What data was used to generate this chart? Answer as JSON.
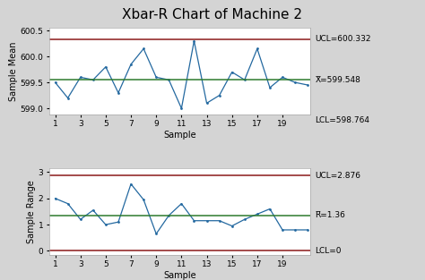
{
  "title": "Xbar-R Chart of Machine 2",
  "xbar_data": [
    599.5,
    599.2,
    599.6,
    599.55,
    599.8,
    599.3,
    599.85,
    600.15,
    599.6,
    599.55,
    599.0,
    600.3,
    599.1,
    599.25,
    599.7,
    599.55,
    600.15,
    599.4,
    599.6,
    599.5,
    599.45
  ],
  "r_data": [
    2.0,
    1.8,
    1.2,
    1.55,
    1.0,
    1.1,
    2.55,
    1.95,
    0.65,
    1.35,
    1.8,
    1.15,
    1.15,
    1.15,
    0.95,
    1.2,
    1.4,
    1.6,
    0.8,
    0.8,
    0.8
  ],
  "xbar_ucl": 600.332,
  "xbar_cl": 599.548,
  "xbar_lcl": 598.764,
  "r_ucl": 2.876,
  "r_cl": 1.36,
  "r_lcl": 0,
  "xbar_ylim": [
    598.88,
    600.55
  ],
  "r_ylim": [
    -0.15,
    3.15
  ],
  "xbar_yticks": [
    599.0,
    599.5,
    600.0,
    600.5
  ],
  "r_yticks": [
    0,
    1,
    2,
    3
  ],
  "xticks": [
    1,
    3,
    5,
    7,
    9,
    11,
    13,
    15,
    17,
    19
  ],
  "n_samples": 21,
  "line_color": "#2469a0",
  "ucl_lcl_color": "#8b1a1a",
  "cl_color": "#2d7a2d",
  "bg_color": "#d4d4d4",
  "plot_bg": "#ffffff",
  "title_fontsize": 11,
  "label_fontsize": 7,
  "tick_fontsize": 6.5,
  "annotation_fontsize": 6.5
}
